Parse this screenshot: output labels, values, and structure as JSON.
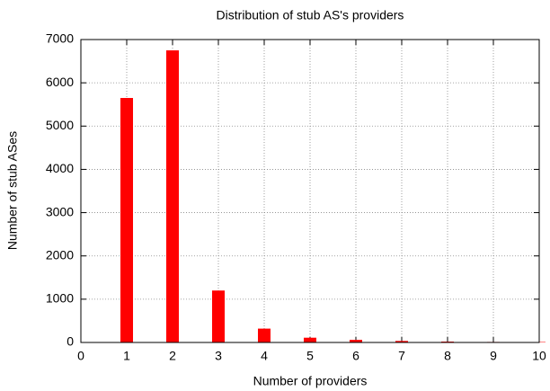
{
  "chart_data": {
    "type": "bar",
    "title": "Distribution of stub AS's providers",
    "xlabel": "Number of providers",
    "ylabel": "Number of stub ASes",
    "x": [
      1,
      2,
      3,
      4,
      5,
      6,
      7,
      8,
      9,
      10
    ],
    "values": [
      5650,
      6750,
      1200,
      320,
      110,
      60,
      35,
      20,
      12,
      10
    ],
    "color": "#ff0000",
    "xlim": [
      0,
      10
    ],
    "xticks": [
      0,
      1,
      2,
      3,
      4,
      5,
      6,
      7,
      8,
      9,
      10
    ],
    "ylim": [
      0,
      7000
    ],
    "yticks": [
      0,
      1000,
      2000,
      3000,
      4000,
      5000,
      6000,
      7000
    ],
    "grid": true
  }
}
